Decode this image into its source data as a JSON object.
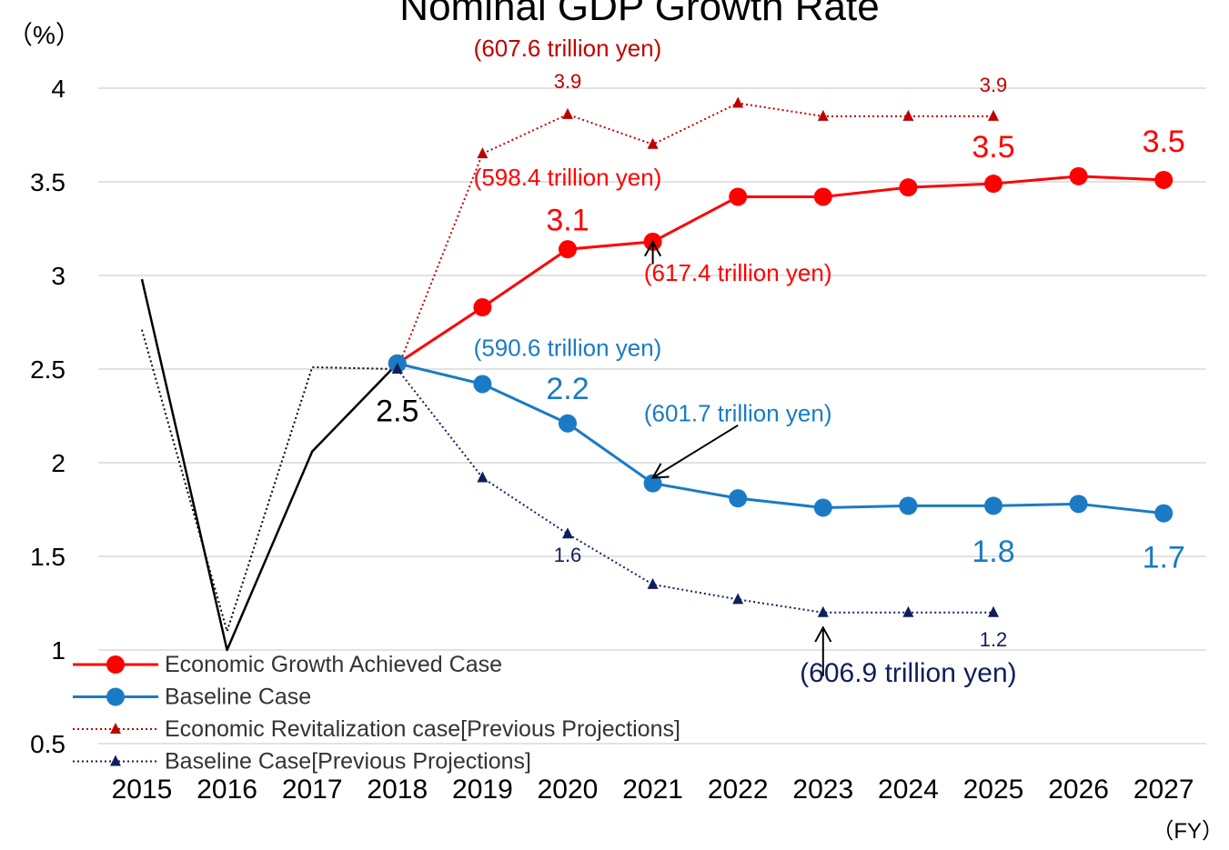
{
  "chart_data": {
    "type": "line",
    "title": "Nominal GDP Growth Rate",
    "ylabel": "（%）",
    "xlabel": "（FY）",
    "ylim": [
      0.5,
      4
    ],
    "yticks": [
      "0.5",
      "1",
      "1.5",
      "2",
      "2.5",
      "3",
      "3.5",
      "4"
    ],
    "grid": true,
    "legend_position": "bottom-left",
    "categories": [
      "2015",
      "2016",
      "2017",
      "2018",
      "2019",
      "2020",
      "2021",
      "2022",
      "2023",
      "2024",
      "2025",
      "2026",
      "2027"
    ],
    "series": [
      {
        "name": "Economic Growth Achieved Case",
        "color": "#ff0000",
        "style": "solid",
        "marker": "circle",
        "values": [
          null,
          null,
          null,
          2.53,
          2.83,
          3.14,
          3.18,
          3.42,
          3.42,
          3.47,
          3.49,
          3.53,
          3.51
        ]
      },
      {
        "name": "Baseline Case",
        "color": "#1a7bc4",
        "style": "solid",
        "marker": "circle",
        "values": [
          null,
          null,
          null,
          2.53,
          2.42,
          2.21,
          1.89,
          1.81,
          1.76,
          1.77,
          1.77,
          1.78,
          1.73
        ]
      },
      {
        "name": "Economic Revitalization case[Previous Projections]",
        "color": "#c00000",
        "style": "dotted",
        "marker": "triangle",
        "values": [
          null,
          null,
          null,
          2.5,
          3.65,
          3.86,
          3.7,
          3.92,
          3.85,
          3.85,
          3.85,
          null,
          null
        ]
      },
      {
        "name": "Baseline Case[Previous Projections]",
        "color": "#0f1f5c",
        "style": "dotted",
        "marker": "triangle",
        "values": [
          null,
          null,
          null,
          2.5,
          1.92,
          1.62,
          1.35,
          1.27,
          1.2,
          1.2,
          1.2,
          null,
          null
        ]
      },
      {
        "color": "#000000",
        "style": "solid",
        "marker": "none",
        "values": [
          2.98,
          1.0,
          2.06,
          2.53,
          null,
          null,
          null,
          null,
          null,
          null,
          null,
          null,
          null
        ]
      },
      {
        "color": "#000000",
        "style": "dotted",
        "marker": "none",
        "values": [
          2.71,
          1.1,
          2.51,
          2.5,
          null,
          null,
          null,
          null,
          null,
          null,
          null,
          null,
          null
        ]
      }
    ],
    "annotations": [
      {
        "text": "(607.6 trillion yen)",
        "x": "2020",
        "y": 4.17,
        "color": "#c00000",
        "size": "medium"
      },
      {
        "text": "3.9",
        "x": "2020",
        "y": 4.0,
        "color": "#c00000",
        "size": "small"
      },
      {
        "text": "3.9",
        "x": "2025",
        "y": 3.98,
        "color": "#c00000",
        "size": "small"
      },
      {
        "text": "3.5",
        "x": "2025",
        "y": 3.63,
        "color": "#ff0000",
        "size": "large"
      },
      {
        "text": "3.5",
        "x": "2027",
        "y": 3.66,
        "color": "#ff0000",
        "size": "large"
      },
      {
        "text": "(598.4 trillion yen)",
        "x": "2020",
        "y": 3.48,
        "color": "#ff0000",
        "size": "medium"
      },
      {
        "text": "3.1",
        "x": "2020",
        "y": 3.24,
        "color": "#ff0000",
        "size": "large"
      },
      {
        "text": "(617.4 trillion yen)",
        "x": "2022",
        "y": 2.97,
        "color": "#ff0000",
        "size": "medium"
      },
      {
        "text": "(590.6 trillion yen)",
        "x": "2020",
        "y": 2.57,
        "color": "#1a7bc4",
        "size": "medium"
      },
      {
        "text": "2.2",
        "x": "2020",
        "y": 2.34,
        "color": "#1a7bc4",
        "size": "large"
      },
      {
        "text": "2.5",
        "x": "2018",
        "y": 2.22,
        "color": "#000000",
        "size": "large"
      },
      {
        "text": "(601.7 trillion yen)",
        "x": "2022",
        "y": 2.22,
        "color": "#1a7bc4",
        "size": "medium"
      },
      {
        "text": "1.8",
        "x": "2025",
        "y": 1.47,
        "color": "#1a7bc4",
        "size": "large"
      },
      {
        "text": "1.7",
        "x": "2027",
        "y": 1.44,
        "color": "#1a7bc4",
        "size": "large"
      },
      {
        "text": "1.6",
        "x": "2020",
        "y": 1.47,
        "color": "#0f1f5c",
        "size": "small"
      },
      {
        "text": "1.2",
        "x": "2025",
        "y": 1.02,
        "color": "#0f1f5c",
        "size": "small"
      },
      {
        "text": "(606.9 trillion yen)",
        "x": "2024",
        "y": 0.83,
        "color": "#0f1f5c",
        "size": "medium-large"
      }
    ],
    "arrows": [
      {
        "from": [
          "2021",
          3.06
        ],
        "to": [
          "2021",
          3.18
        ],
        "color": "#000000"
      },
      {
        "from": [
          "2022",
          2.2
        ],
        "to": [
          "2021",
          1.92
        ],
        "color": "#000000"
      },
      {
        "from": [
          "2023",
          0.86
        ],
        "to": [
          "2023",
          1.12
        ],
        "color": "#000000"
      }
    ]
  }
}
